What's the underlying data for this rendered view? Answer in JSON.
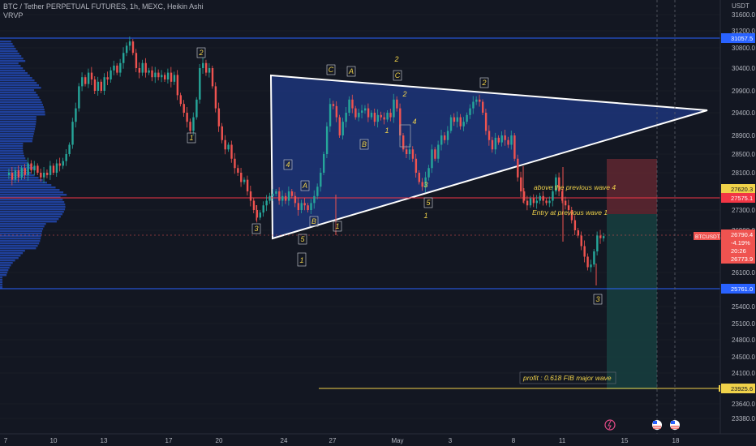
{
  "legend": {
    "title": "BTC / Tether PERPETUAL FUTURES, 1h, MEXC, Heikin Ashi",
    "indicator": "VRVP"
  },
  "axis": {
    "currency": "USDT",
    "y_ticks": [
      23380.0,
      23640.0,
      24100.0,
      24500.0,
      24800.0,
      25100.0,
      25400.0,
      26100.0,
      26900.0,
      27300.0,
      28100.0,
      28500.0,
      28900.0,
      29400.0,
      29900.0,
      30400.0,
      30800.0,
      31200.0,
      31600.0
    ],
    "x_ticks": [
      "7",
      "10",
      "13",
      "17",
      "20",
      "24",
      "27",
      "May",
      "3",
      "8",
      "11",
      "15",
      "18"
    ]
  },
  "price_labels": [
    {
      "value": "31057.5",
      "color": "#2962ff"
    },
    {
      "value": "27620.3",
      "color": "#f0d24a"
    },
    {
      "value": "27575.1",
      "color": "#f23645"
    },
    {
      "value": "25761.0",
      "color": "#2962ff"
    },
    {
      "value": "23925.6",
      "color": "#f0d24a"
    }
  ],
  "current_price": {
    "symbol": "BTCUSDT.P",
    "price": "26790.4",
    "change": "-4.19%",
    "countdown": "20:26",
    "low": "26773.9"
  },
  "annotations": {
    "above_wave4": "above the previous wave 4",
    "entry": "Entry at previous wave  1",
    "profit": "profit  : 0.618 FIB major wave"
  },
  "wave_labels": [
    {
      "text": "2",
      "boxed": true
    },
    {
      "text": "1",
      "boxed": true
    },
    {
      "text": "3",
      "boxed": true
    },
    {
      "text": "C",
      "boxed": true
    },
    {
      "text": "A",
      "boxed": true
    },
    {
      "text": "2",
      "boxed": false
    },
    {
      "text": "C",
      "boxed": true
    },
    {
      "text": "2",
      "boxed": false
    },
    {
      "text": "2",
      "boxed": true
    },
    {
      "text": "4",
      "boxed": false
    },
    {
      "text": "1",
      "boxed": false
    },
    {
      "text": "B",
      "boxed": true
    },
    {
      "text": "4",
      "boxed": true
    },
    {
      "text": "A",
      "boxed": true
    },
    {
      "text": "B",
      "boxed": true
    },
    {
      "text": "1",
      "boxed": true
    },
    {
      "text": "5",
      "boxed": true
    },
    {
      "text": "1",
      "boxed": true
    },
    {
      "text": "3",
      "boxed": false
    },
    {
      "text": "5",
      "boxed": true
    },
    {
      "text": "1",
      "boxed": false
    },
    {
      "text": "3",
      "boxed": true
    }
  ],
  "colors": {
    "background": "#131722",
    "up": "#26a69a",
    "down": "#ef5350",
    "triangle_fill": "#1f3a8a",
    "volume_profile": "#2962ff",
    "hline_blue": "#2962ff",
    "hline_red": "#f23645",
    "hline_yellow": "#f0d24a",
    "risk_zone": "#6b2a33",
    "reward_zone": "#17403f"
  },
  "chart_data": {
    "type": "candlestick",
    "style": "Heikin Ashi",
    "timeframe": "1h",
    "x_axis": "date",
    "ylim": [
      23200,
      31800
    ],
    "horizontal_levels": [
      31057.5,
      27620.3,
      27575.1,
      25761.0,
      23925.6
    ],
    "price_path": [
      [
        0,
        28050
      ],
      [
        4,
        28100
      ],
      [
        8,
        27950
      ],
      [
        12,
        28150
      ],
      [
        16,
        28000
      ],
      [
        20,
        28200
      ],
      [
        24,
        28050
      ],
      [
        28,
        28300
      ],
      [
        32,
        28150
      ],
      [
        36,
        28250
      ],
      [
        40,
        28100
      ],
      [
        44,
        28000
      ],
      [
        48,
        28100
      ],
      [
        52,
        28050
      ],
      [
        56,
        28250
      ],
      [
        60,
        28100
      ],
      [
        64,
        28300
      ],
      [
        68,
        28250
      ],
      [
        72,
        28350
      ],
      [
        76,
        28500
      ],
      [
        80,
        28700
      ],
      [
        84,
        29200
      ],
      [
        88,
        29500
      ],
      [
        92,
        30000
      ],
      [
        96,
        30200
      ],
      [
        100,
        30050
      ],
      [
        104,
        30300
      ],
      [
        108,
        30150
      ],
      [
        112,
        29900
      ],
      [
        116,
        30100
      ],
      [
        120,
        29900
      ],
      [
        124,
        30200
      ],
      [
        128,
        30150
      ],
      [
        132,
        30350
      ],
      [
        136,
        30450
      ],
      [
        140,
        30300
      ],
      [
        144,
        30500
      ],
      [
        148,
        30700
      ],
      [
        152,
        30850
      ],
      [
        156,
        30950
      ],
      [
        160,
        30700
      ],
      [
        164,
        30400
      ],
      [
        168,
        30300
      ],
      [
        172,
        30500
      ],
      [
        176,
        30300
      ],
      [
        180,
        30350
      ],
      [
        184,
        30200
      ],
      [
        188,
        30300
      ],
      [
        192,
        30200
      ],
      [
        196,
        30250
      ],
      [
        200,
        30150
      ],
      [
        204,
        30300
      ],
      [
        208,
        30100
      ],
      [
        212,
        30250
      ],
      [
        216,
        29800
      ],
      [
        220,
        29600
      ],
      [
        224,
        29400
      ],
      [
        228,
        29200
      ],
      [
        232,
        29000
      ],
      [
        236,
        29300
      ],
      [
        240,
        29700
      ],
      [
        244,
        30400
      ],
      [
        248,
        30500
      ],
      [
        252,
        30300
      ],
      [
        256,
        30400
      ],
      [
        260,
        30000
      ],
      [
        264,
        29500
      ],
      [
        268,
        29100
      ],
      [
        272,
        28800
      ],
      [
        276,
        28600
      ],
      [
        280,
        28700
      ],
      [
        284,
        28400
      ],
      [
        288,
        28200
      ],
      [
        292,
        28100
      ],
      [
        296,
        27900
      ],
      [
        300,
        27950
      ],
      [
        304,
        27700
      ],
      [
        308,
        27500
      ],
      [
        312,
        27300
      ],
      [
        316,
        27150
      ],
      [
        320,
        27250
      ],
      [
        324,
        27400
      ],
      [
        328,
        27500
      ],
      [
        332,
        27600
      ],
      [
        336,
        27650
      ],
      [
        340,
        27700
      ],
      [
        344,
        27500
      ],
      [
        348,
        27600
      ],
      [
        352,
        27500
      ],
      [
        356,
        27700
      ],
      [
        360,
        27600
      ],
      [
        364,
        27450
      ],
      [
        368,
        27300
      ],
      [
        372,
        27450
      ],
      [
        376,
        27400
      ],
      [
        380,
        27300
      ],
      [
        384,
        27450
      ],
      [
        388,
        27600
      ],
      [
        392,
        27800
      ],
      [
        396,
        28100
      ],
      [
        400,
        28500
      ],
      [
        404,
        29100
      ],
      [
        408,
        29600
      ],
      [
        412,
        29550
      ],
      [
        416,
        29300
      ],
      [
        420,
        28900
      ],
      [
        424,
        29200
      ],
      [
        428,
        29400
      ],
      [
        432,
        29700
      ],
      [
        436,
        29500
      ],
      [
        440,
        29300
      ],
      [
        444,
        29400
      ],
      [
        448,
        29450
      ],
      [
        452,
        29500
      ],
      [
        456,
        29300
      ],
      [
        460,
        29400
      ],
      [
        464,
        29200
      ],
      [
        468,
        29350
      ],
      [
        472,
        29300
      ],
      [
        476,
        29250
      ],
      [
        480,
        29400
      ],
      [
        484,
        29300
      ],
      [
        488,
        29700
      ],
      [
        492,
        29500
      ],
      [
        496,
        28900
      ],
      [
        500,
        28600
      ],
      [
        504,
        28500
      ],
      [
        508,
        28600
      ],
      [
        512,
        28400
      ],
      [
        516,
        28100
      ],
      [
        520,
        27900
      ],
      [
        524,
        27800
      ],
      [
        528,
        28000
      ],
      [
        532,
        28200
      ],
      [
        536,
        28600
      ],
      [
        540,
        28400
      ],
      [
        544,
        28700
      ],
      [
        548,
        28900
      ],
      [
        552,
        28800
      ],
      [
        556,
        29000
      ],
      [
        560,
        29300
      ],
      [
        564,
        29200
      ],
      [
        568,
        29300
      ],
      [
        572,
        29100
      ],
      [
        576,
        29200
      ],
      [
        580,
        29350
      ],
      [
        584,
        29500
      ],
      [
        588,
        29650
      ],
      [
        592,
        29700
      ],
      [
        596,
        29650
      ],
      [
        600,
        29400
      ],
      [
        604,
        29000
      ],
      [
        608,
        28800
      ],
      [
        612,
        28600
      ],
      [
        616,
        28850
      ],
      [
        620,
        28750
      ],
      [
        624,
        28900
      ],
      [
        628,
        28800
      ],
      [
        632,
        28700
      ],
      [
        636,
        28900
      ],
      [
        640,
        28400
      ],
      [
        644,
        28000
      ],
      [
        648,
        27700
      ],
      [
        652,
        27500
      ],
      [
        656,
        27400
      ],
      [
        660,
        27550
      ],
      [
        664,
        27450
      ],
      [
        668,
        27500
      ],
      [
        672,
        27600
      ],
      [
        676,
        27500
      ],
      [
        680,
        27450
      ],
      [
        684,
        27500
      ],
      [
        688,
        27700
      ],
      [
        692,
        28000
      ],
      [
        696,
        27700
      ],
      [
        700,
        27500
      ],
      [
        704,
        27400
      ],
      [
        708,
        27300
      ],
      [
        712,
        27100
      ],
      [
        716,
        26900
      ],
      [
        720,
        26800
      ],
      [
        724,
        26600
      ],
      [
        728,
        26400
      ],
      [
        732,
        26200
      ],
      [
        736,
        26250
      ],
      [
        740,
        26500
      ],
      [
        744,
        26800
      ],
      [
        748,
        26750
      ],
      [
        752,
        26790
      ]
    ]
  }
}
